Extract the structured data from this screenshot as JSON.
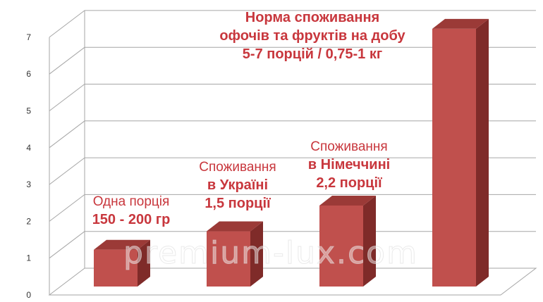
{
  "chart_data": {
    "type": "bar",
    "categories": [
      "Одна порція",
      "Споживання в Україні",
      "Споживання в Німеччині",
      "Норма споживання"
    ],
    "values": [
      1,
      1.5,
      2.2,
      7
    ],
    "ylim": [
      0,
      7
    ],
    "yticks": [
      "0",
      "1",
      "2",
      "3",
      "4",
      "5",
      "6",
      "7"
    ],
    "grid": true,
    "bar_color": "#c0504d",
    "text_color": "#c8373d",
    "annotations": [
      {
        "lines": [
          {
            "text": "Одна порція",
            "bold": false
          },
          {
            "text": "150 - 200 гр",
            "bold": true
          }
        ]
      },
      {
        "lines": [
          {
            "text": "Споживання",
            "bold": false
          },
          {
            "text": "в Україні",
            "bold": true
          },
          {
            "text": "1,5 порції",
            "bold": true
          }
        ]
      },
      {
        "lines": [
          {
            "text": "Споживання",
            "bold": false
          },
          {
            "text": "в Німеччині",
            "bold": true
          },
          {
            "text": "2,2 порції",
            "bold": true
          }
        ]
      },
      {
        "lines": [
          {
            "text": "Норма споживання",
            "bold": true
          },
          {
            "text": "офочів та фруктів на добу",
            "bold": true
          },
          {
            "text": "5-7 порцій / 0,75-1 кг",
            "bold": true
          }
        ]
      }
    ],
    "watermark": "premium-lux.com"
  }
}
